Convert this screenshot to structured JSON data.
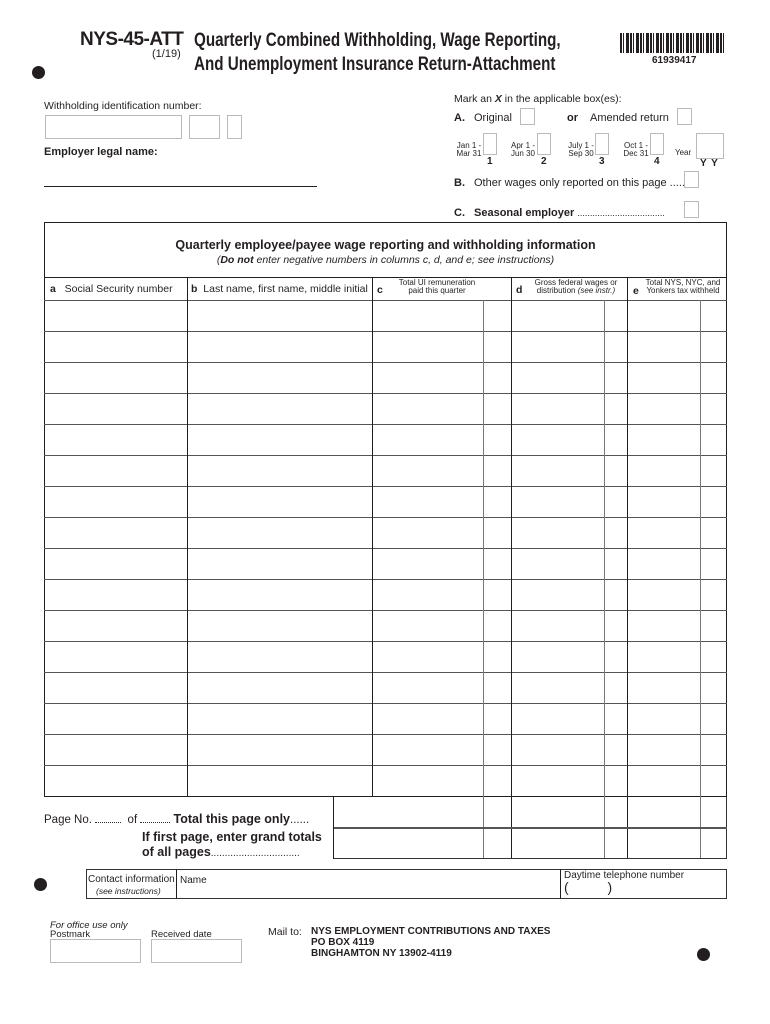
{
  "header": {
    "form_id": "NYS-45-ATT",
    "revision": "(1/19)",
    "title_line1": "Quarterly Combined Withholding, Wage Reporting,",
    "title_line2": "And Unemployment Insurance Return-Attachment",
    "barcode_number": "61939417"
  },
  "employer": {
    "withholding_id_label": "Withholding identification number:",
    "legal_name_label": "Employer legal name:"
  },
  "marks": {
    "instruction_pre": "Mark an ",
    "instruction_x": "X",
    "instruction_post": " in the applicable box(es):",
    "a_letter": "A.",
    "original": "Original",
    "or": "or",
    "amended": "Amended return",
    "quarters": [
      {
        "l1": "Jan 1 -",
        "l2": "Mar 31",
        "num": "1"
      },
      {
        "l1": "Apr 1 -",
        "l2": "Jun 30",
        "num": "2"
      },
      {
        "l1": "July 1 -",
        "l2": "Sep 30",
        "num": "3"
      },
      {
        "l1": "Oct 1 -",
        "l2": "Dec 31",
        "num": "4"
      }
    ],
    "year_label": "Year",
    "year_format": "Y Y",
    "b_letter": "B.",
    "b_text": "Other wages only reported on this page .....",
    "c_letter": "C.",
    "c_text": "Seasonal employer",
    "c_dots": "..................................."
  },
  "table": {
    "title": "Quarterly employee/payee wage reporting and withholding information",
    "subtitle_bold": "Do not",
    "subtitle_rest": " enter negative numbers in columns c, d, and e; see instructions)",
    "subtitle_open": "(",
    "columns": [
      {
        "letter": "a",
        "label": "Social Security number"
      },
      {
        "letter": "b",
        "label": "Last name, first name, middle initial"
      },
      {
        "letter": "c",
        "label": "Total UI remuneration paid this quarter"
      },
      {
        "letter": "d",
        "label": "Gross federal wages or distribution",
        "note": "(see instr.)"
      },
      {
        "letter": "e",
        "label": "Total NYS, NYC, and Yonkers tax withheld"
      }
    ],
    "rows": [
      {},
      {},
      {},
      {},
      {},
      {},
      {},
      {},
      {},
      {},
      {},
      {},
      {},
      {},
      {},
      {}
    ]
  },
  "totals": {
    "page_no": "Page No.",
    "of": "of",
    "total_page": "Total this page only",
    "total_dots": "......",
    "grand_line1": "If first page, enter grand totals",
    "grand_line2": "of all pages",
    "grand_dots": "................................"
  },
  "contact": {
    "label": "Contact information",
    "note": "(see instructions)",
    "name_label": "Name",
    "phone_label": "Daytime telephone number",
    "phone_parens": "(          )"
  },
  "office": {
    "note": "For office use only",
    "postmark": "Postmark",
    "received": "Received date"
  },
  "mail": {
    "label": "Mail to:",
    "line1": "NYS EMPLOYMENT CONTRIBUTIONS AND TAXES",
    "line2": "PO BOX 4119",
    "line3": "BINGHAMTON NY 13902-4119"
  }
}
